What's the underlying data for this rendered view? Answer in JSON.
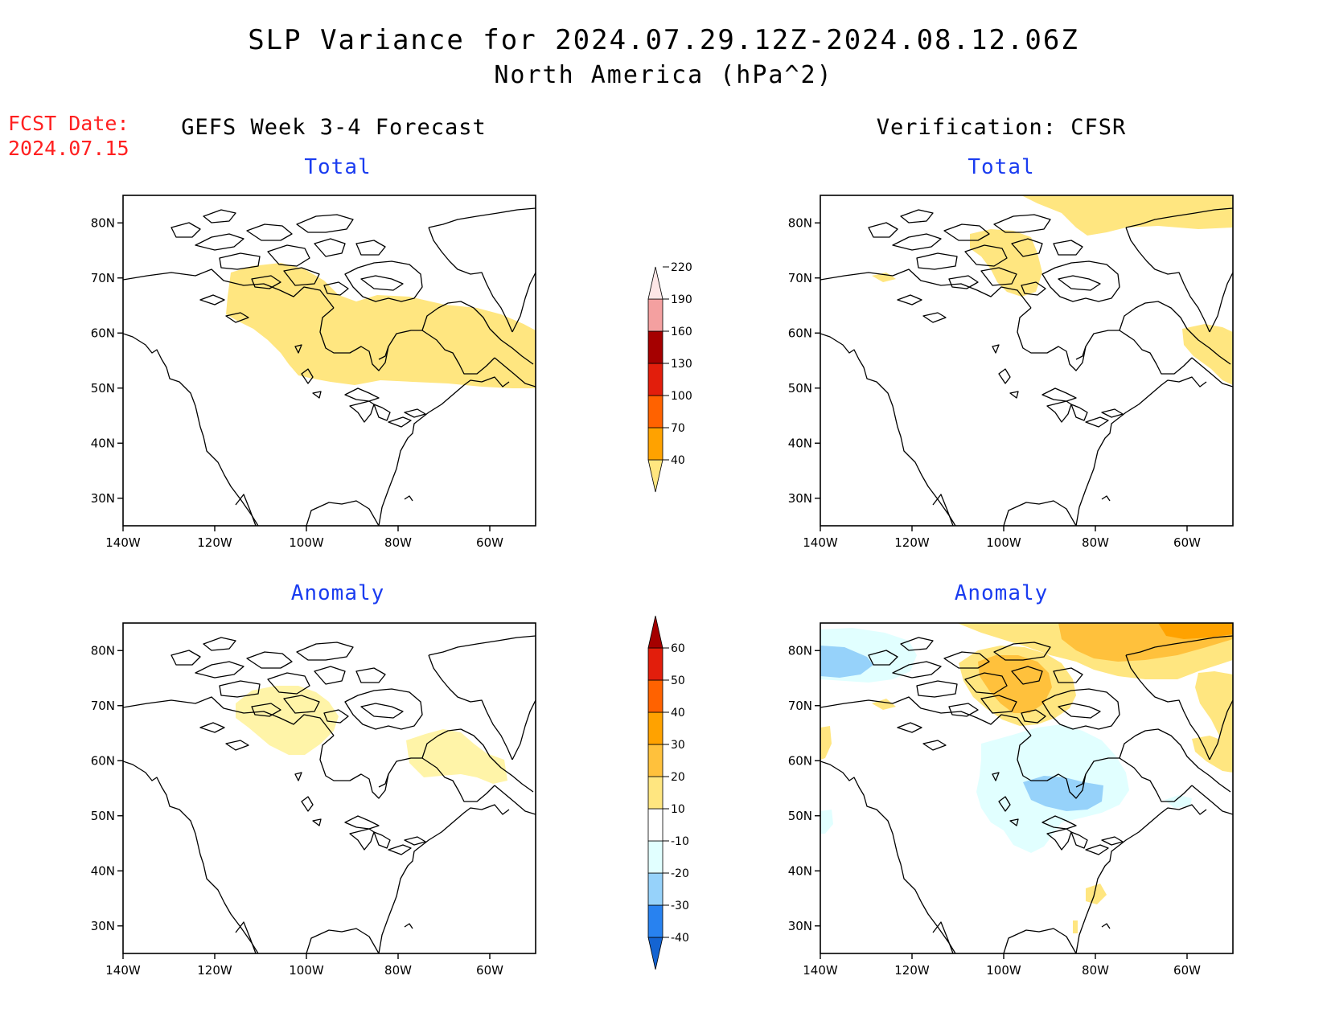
{
  "title": {
    "line1": "SLP Variance for 2024.07.29.12Z-2024.08.12.06Z",
    "line2": "North America (hPa^2)"
  },
  "forecast_date": {
    "label": "FCST Date:",
    "value": "2024.07.15"
  },
  "columns": {
    "left": "GEFS Week 3-4 Forecast",
    "right": "Verification: CFSR"
  },
  "panels": {
    "top_left": "Total",
    "top_right": "Total",
    "bottom_left": "Anomaly",
    "bottom_right": "Anomaly"
  },
  "axes": {
    "lon_ticks": [
      "140W",
      "120W",
      "100W",
      "80W",
      "60W"
    ],
    "lat_ticks": [
      "30N",
      "40N",
      "50N",
      "60N",
      "70N",
      "80N"
    ],
    "lon_range": [
      -140,
      -50
    ],
    "lat_range": [
      25,
      85
    ]
  },
  "colorbars": {
    "total": {
      "levels": [
        "40",
        "70",
        "100",
        "130",
        "160",
        "190",
        "220"
      ],
      "colors": [
        "#ffe680",
        "#ffa200",
        "#ff6200",
        "#e21e0c",
        "#a50000",
        "#f4a0a0",
        "#fde6e6"
      ]
    },
    "anomaly": {
      "levels": [
        "-40",
        "-30",
        "-20",
        "-10",
        "10",
        "20",
        "30",
        "40",
        "50",
        "60"
      ],
      "colors": [
        "#1464d2",
        "#2882f0",
        "#96d2fa",
        "#e1ffff",
        "#ffffff",
        "#ffe680",
        "#ffc13c",
        "#ffa200",
        "#ff6200",
        "#e21e0c",
        "#a50000"
      ]
    }
  }
}
